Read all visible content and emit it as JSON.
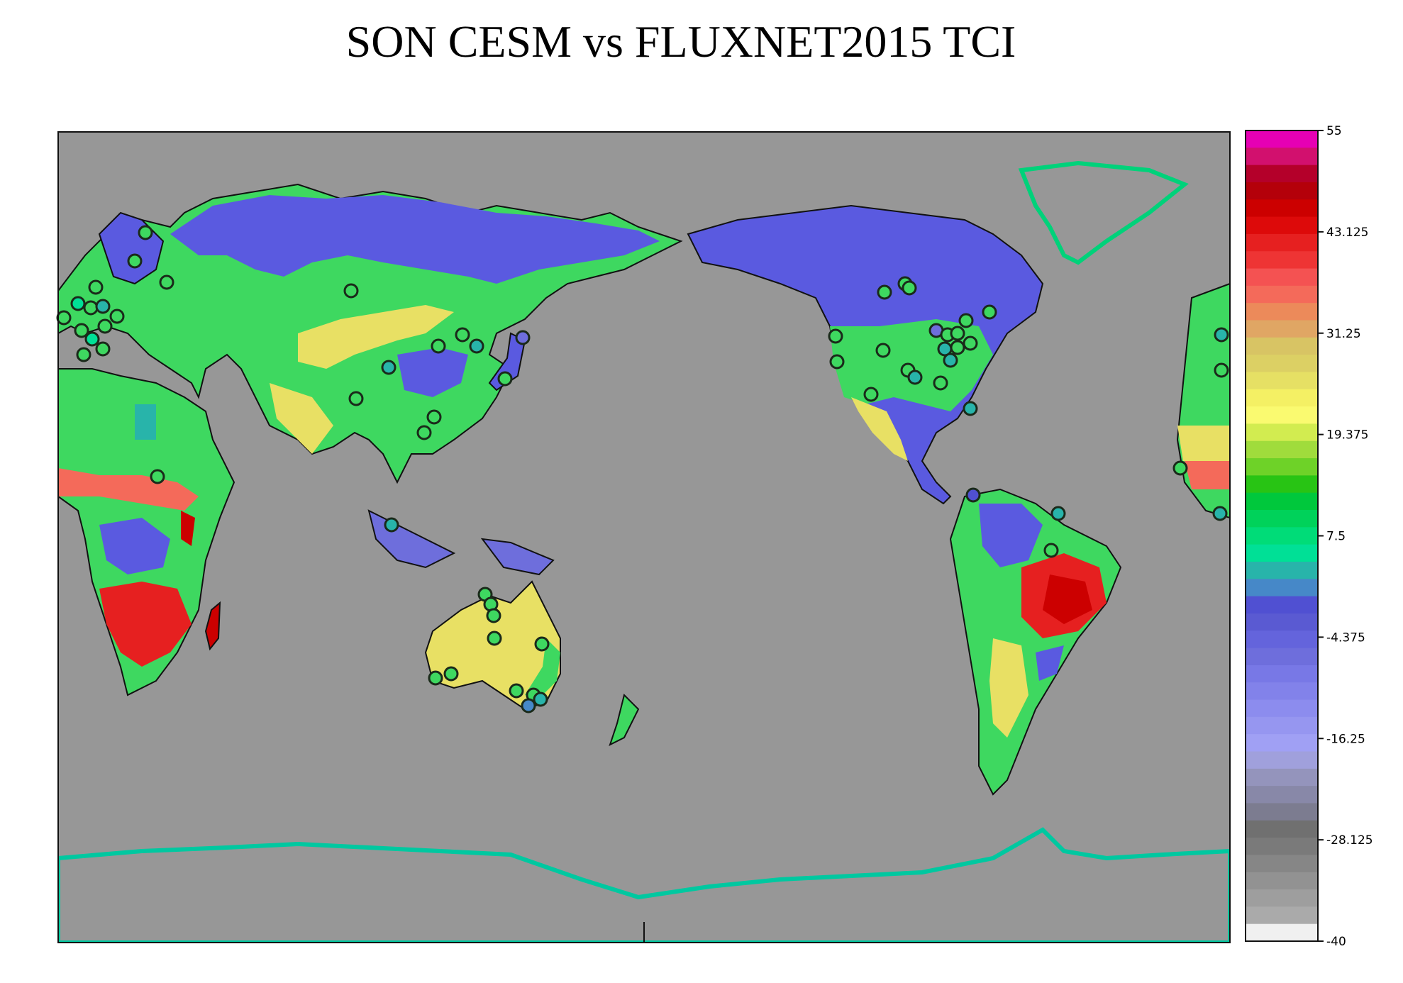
{
  "title": "SON CESM vs FLUXNET2015 TCI",
  "colorbar": {
    "min": -40,
    "max": 55,
    "tick_labels": [
      "55",
      "43.125",
      "31.25",
      "19.375",
      "7.5",
      "-4.375",
      "-16.25",
      "-28.125",
      "-40"
    ],
    "colors_top_to_bottom": [
      "#e600b4",
      "#d2106e",
      "#b4002a",
      "#b4000a",
      "#cc0000",
      "#dd0a0a",
      "#e62020",
      "#ee3434",
      "#f45252",
      "#f46a5a",
      "#ec8a5a",
      "#e0a664",
      "#d8c464",
      "#dcd064",
      "#e6e064",
      "#f4f064",
      "#fafa70",
      "#d2ec50",
      "#a0dc3c",
      "#6ed228",
      "#28c414",
      "#00c83c",
      "#00d25a",
      "#00dc78",
      "#00e096",
      "#28b4aa",
      "#4688c8",
      "#5050d2",
      "#5a5ad2",
      "#6464dc",
      "#6e6edc",
      "#7878e6",
      "#8282ea",
      "#8c8cee",
      "#9696f0",
      "#a0a0f4",
      "#a0a0dc",
      "#9494bc",
      "#8888a8",
      "#7c7c90",
      "#707070",
      "#7a7a7a",
      "#868686",
      "#929292",
      "#9e9e9e",
      "#aaaaaa",
      "#f0f0f0"
    ]
  },
  "map": {
    "projection": "cylindrical equidistant, centered on 150E",
    "ocean_color": "#979797",
    "site_outline_color": "#1a2a1a"
  }
}
